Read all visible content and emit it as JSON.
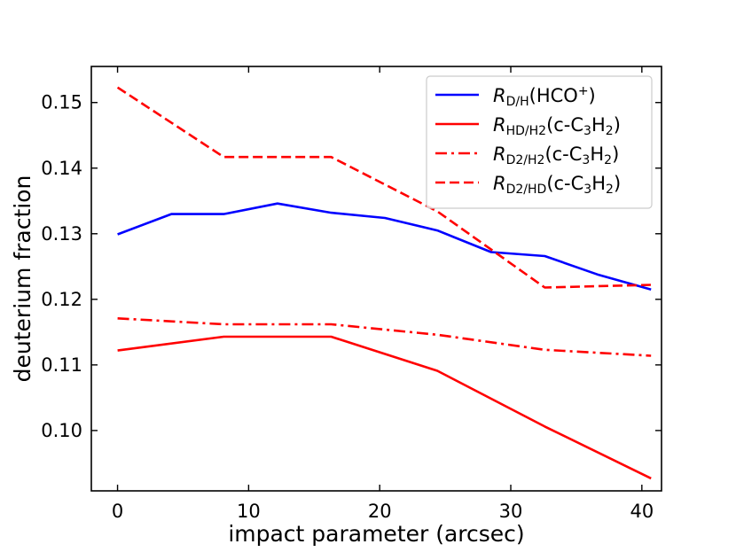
{
  "chart_data": {
    "type": "line",
    "title": "",
    "xlabel": "impact parameter (arcsec)",
    "ylabel": "deuterium fraction",
    "xlim": [
      -2.0,
      41.5
    ],
    "ylim": [
      0.0908,
      0.1555
    ],
    "xticks": [
      0,
      10,
      20,
      30,
      40
    ],
    "yticks": [
      0.1,
      0.11,
      0.12,
      0.13,
      0.14,
      0.15
    ],
    "xtick_labels": [
      "0",
      "10",
      "20",
      "30",
      "40"
    ],
    "ytick_labels": [
      "0.10",
      "0.11",
      "0.12",
      "0.13",
      "0.14",
      "0.15"
    ],
    "grid": false,
    "legend_position": "top-right",
    "series": [
      {
        "name": "R_D/H(HCO+)",
        "label_main": "R",
        "label_sub": "D/H",
        "label_rest": "(HCO",
        "label_sup": "+",
        "label_end": ")",
        "color": "#0000ff",
        "dash": "solid",
        "x": [
          0,
          4.1,
          8.1,
          12.2,
          16.3,
          20.4,
          24.4,
          28.5,
          32.6,
          36.6,
          40.7
        ],
        "y": [
          0.1299,
          0.133,
          0.133,
          0.1346,
          0.1332,
          0.1324,
          0.1305,
          0.1272,
          0.1266,
          0.1238,
          0.1215
        ]
      },
      {
        "name": "R_HD/H2(c-C3H2)",
        "label_main": "R",
        "label_sub": "HD/H2",
        "label_rest": "(c-C",
        "label_sub2": "3",
        "label_mid": "H",
        "label_sub3": "2",
        "label_end": ")",
        "color": "#ff0000",
        "dash": "solid",
        "x": [
          0,
          8.1,
          16.3,
          24.4,
          32.6,
          40.7
        ],
        "y": [
          0.1122,
          0.1143,
          0.1143,
          0.1091,
          0.1006,
          0.0927
        ]
      },
      {
        "name": "R_D2/H2(c-C3H2)",
        "label_main": "R",
        "label_sub": "D2/H2",
        "label_rest": "(c-C",
        "label_sub2": "3",
        "label_mid": "H",
        "label_sub3": "2",
        "label_end": ")",
        "color": "#ff0000",
        "dash": "dashdot",
        "x": [
          0,
          8.1,
          16.3,
          24.4,
          32.6,
          40.7
        ],
        "y": [
          0.1171,
          0.1162,
          0.1162,
          0.1146,
          0.1123,
          0.1114
        ]
      },
      {
        "name": "R_D2/HD(c-C3H2)",
        "label_main": "R",
        "label_sub": "D2/HD",
        "label_rest": "(c-C",
        "label_sub2": "3",
        "label_mid": "H",
        "label_sub3": "2",
        "label_end": ")",
        "color": "#ff0000",
        "dash": "dashed",
        "x": [
          0,
          8.1,
          16.3,
          24.4,
          32.6,
          40.7
        ],
        "y": [
          0.1523,
          0.1417,
          0.1417,
          0.1334,
          0.1218,
          0.1222
        ]
      }
    ]
  }
}
